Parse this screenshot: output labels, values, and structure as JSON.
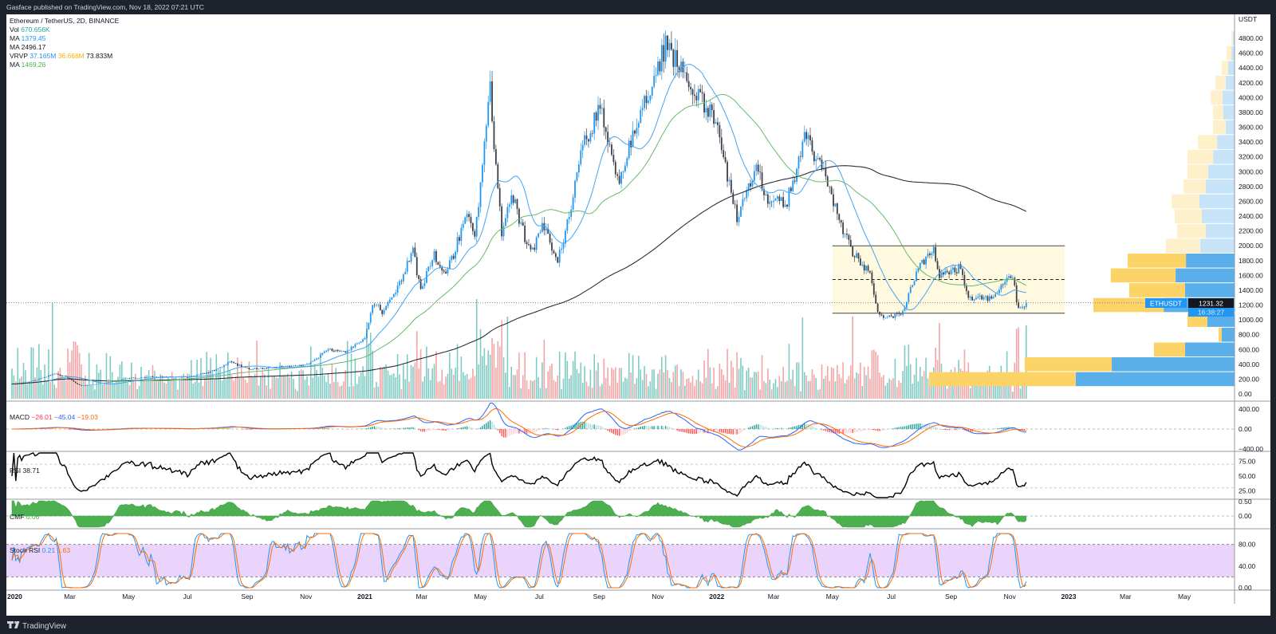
{
  "header": {
    "published": "Gasface published on TradingView.com, Nov 18, 2022 07:21 UTC"
  },
  "footer": {
    "brand": "TradingView"
  },
  "legend": {
    "title": "Ethereum / TetherUS, 2D, BINANCE",
    "vol_label": "Vol",
    "vol_value": "670.656K",
    "ma1_label": "MA",
    "ma1_value": "1379.45",
    "ma2_label": "MA",
    "ma2_value": "2496.17",
    "vrvp_label": "VRVP",
    "vrvp_up": "37.165M",
    "vrvp_down": "36.668M",
    "vrvp_total": "73.833M",
    "ma3_label": "MA",
    "ma3_value": "1469.26"
  },
  "indicators": {
    "macd": {
      "label": "MACD",
      "hist": "−26.01",
      "macd": "−45.04",
      "signal": "−19.03",
      "ticks": [
        "400.00",
        "0.00",
        "−400.00"
      ]
    },
    "rsi": {
      "label": "RSI",
      "value": "38.71",
      "ticks": [
        "75.00",
        "50.00",
        "25.00"
      ]
    },
    "cmf": {
      "label": "CMF",
      "value": "0.06",
      "ticks": [
        "0.50",
        "0.00"
      ]
    },
    "stoch": {
      "label": "Stoch RSI",
      "k": "0.21",
      "d": "1.63",
      "ticks": [
        "80.00",
        "40.00",
        "0.00"
      ]
    }
  },
  "price_axis": {
    "unit": "USDT",
    "ticks": [
      "0.00",
      "200.00",
      "400.00",
      "600.00",
      "800.00",
      "1000.00",
      "1200.00",
      "1400.00",
      "1600.00",
      "1800.00",
      "2000.00",
      "2200.00",
      "2400.00",
      "2600.00",
      "2800.00",
      "3000.00",
      "3200.00",
      "3400.00",
      "3600.00",
      "3800.00",
      "4000.00",
      "4200.00",
      "4400.00",
      "4600.00",
      "4800.00"
    ],
    "last_price": "1231.32",
    "symbol_tag": "ETHUSDT",
    "countdown": "16:38:27"
  },
  "time_axis": [
    {
      "date": "2020-01-01",
      "label": "2020",
      "year": true
    },
    {
      "date": "2020-03-01",
      "label": "Mar"
    },
    {
      "date": "2020-05-01",
      "label": "May"
    },
    {
      "date": "2020-07-01",
      "label": "Jul"
    },
    {
      "date": "2020-09-01",
      "label": "Sep"
    },
    {
      "date": "2020-11-01",
      "label": "Nov"
    },
    {
      "date": "2021-01-01",
      "label": "2021",
      "year": true
    },
    {
      "date": "2021-03-01",
      "label": "Mar"
    },
    {
      "date": "2021-05-01",
      "label": "May"
    },
    {
      "date": "2021-07-01",
      "label": "Jul"
    },
    {
      "date": "2021-09-01",
      "label": "Sep"
    },
    {
      "date": "2021-11-01",
      "label": "Nov"
    },
    {
      "date": "2022-01-01",
      "label": "2022",
      "year": true
    },
    {
      "date": "2022-03-01",
      "label": "Mar"
    },
    {
      "date": "2022-05-01",
      "label": "May"
    },
    {
      "date": "2022-07-01",
      "label": "Jul"
    },
    {
      "date": "2022-09-01",
      "label": "Sep"
    },
    {
      "date": "2022-11-01",
      "label": "Nov"
    },
    {
      "date": "2023-01-01",
      "label": "2023",
      "year": true
    },
    {
      "date": "2023-03-01",
      "label": "Mar"
    },
    {
      "date": "2023-05-01",
      "label": "May"
    }
  ],
  "colors": {
    "up": "#2196f3",
    "down": "#3b3f4a",
    "ma_fast": "#42a5f5",
    "ma_mid": "#66bb6a",
    "ma_slow": "#2a2e39",
    "vol_up": "#80cbc4",
    "vol_down": "#f4a5a5",
    "vrvp_up": "#5aaeea",
    "vrvp_down": "#fcd366",
    "vrvp_up_light": "#c6e3f7",
    "vrvp_down_light": "#fff0cc",
    "macd": "#2962ff",
    "signal": "#ff6d00",
    "cmf": "#4caf50",
    "stoch_k": "#2196f3",
    "stoch_d": "#ff6d00",
    "stoch_band": "#ead4fb",
    "box": "#fff9e0",
    "teal": "#26a69a",
    "red": "#f23645",
    "orange": "#ffb300",
    "green": "#4caf50"
  },
  "chart_data": {
    "type": "candlestick",
    "title": "Ethereum / TetherUS, 2D, BINANCE",
    "interval": "2D",
    "ylabel": "USDT",
    "ylim": [
      0,
      4800
    ],
    "xlim": [
      "2020-01-01",
      "2023-06-30"
    ],
    "grid": false,
    "price_anchors": [
      [
        "2020-01-01",
        130
      ],
      [
        "2020-01-20",
        170
      ],
      [
        "2020-02-14",
        275
      ],
      [
        "2020-02-28",
        225
      ],
      [
        "2020-03-13",
        110
      ],
      [
        "2020-03-31",
        135
      ],
      [
        "2020-04-30",
        210
      ],
      [
        "2020-05-31",
        235
      ],
      [
        "2020-06-30",
        225
      ],
      [
        "2020-07-25",
        300
      ],
      [
        "2020-08-14",
        430
      ],
      [
        "2020-09-05",
        335
      ],
      [
        "2020-09-30",
        360
      ],
      [
        "2020-10-31",
        385
      ],
      [
        "2020-11-24",
        600
      ],
      [
        "2020-12-10",
        560
      ],
      [
        "2020-12-31",
        735
      ],
      [
        "2021-01-10",
        1250
      ],
      [
        "2021-01-20",
        1100
      ],
      [
        "2021-02-20",
        1950
      ],
      [
        "2021-02-28",
        1400
      ],
      [
        "2021-03-13",
        1900
      ],
      [
        "2021-03-25",
        1580
      ],
      [
        "2021-04-16",
        2450
      ],
      [
        "2021-04-25",
        2200
      ],
      [
        "2021-05-11",
        4200
      ],
      [
        "2021-05-23",
        2200
      ],
      [
        "2021-06-03",
        2700
      ],
      [
        "2021-06-22",
        1900
      ],
      [
        "2021-07-05",
        2300
      ],
      [
        "2021-07-20",
        1800
      ],
      [
        "2021-08-13",
        3300
      ],
      [
        "2021-09-03",
        3900
      ],
      [
        "2021-09-21",
        2800
      ],
      [
        "2021-10-05",
        3500
      ],
      [
        "2021-10-28",
        4300
      ],
      [
        "2021-11-10",
        4750
      ],
      [
        "2021-11-28",
        4300
      ],
      [
        "2021-12-04",
        4100
      ],
      [
        "2021-12-20",
        3900
      ],
      [
        "2021-12-31",
        3700
      ],
      [
        "2022-01-22",
        2400
      ],
      [
        "2022-02-10",
        3100
      ],
      [
        "2022-02-24",
        2600
      ],
      [
        "2022-03-14",
        2580
      ],
      [
        "2022-04-03",
        3500
      ],
      [
        "2022-04-25",
        2900
      ],
      [
        "2022-05-10",
        2300
      ],
      [
        "2022-05-20",
        1950
      ],
      [
        "2022-06-10",
        1600
      ],
      [
        "2022-06-18",
        1050
      ],
      [
        "2022-06-30",
        1050
      ],
      [
        "2022-07-12",
        1100
      ],
      [
        "2022-07-28",
        1700
      ],
      [
        "2022-08-14",
        1950
      ],
      [
        "2022-08-20",
        1600
      ],
      [
        "2022-09-10",
        1700
      ],
      [
        "2022-09-20",
        1300
      ],
      [
        "2022-10-15",
        1280
      ],
      [
        "2022-10-30",
        1600
      ],
      [
        "2022-11-05",
        1620
      ],
      [
        "2022-11-09",
        1150
      ],
      [
        "2022-11-18",
        1231.32
      ]
    ],
    "moving_averages": [
      {
        "name": "MA fast",
        "period": 20,
        "last": 1379.45
      },
      {
        "name": "MA mid",
        "period": 50,
        "last": 1469.26
      },
      {
        "name": "MA slow",
        "period": 200,
        "last": 2496.17
      }
    ],
    "last_close": 1231.32,
    "volume_profile": {
      "value_area": [
        200,
        1800
      ],
      "rows": [
        {
          "price": 4800,
          "up": 0.5,
          "down": 0.5
        },
        {
          "price": 4600,
          "up": 1,
          "down": 1.6
        },
        {
          "price": 4400,
          "up": 2.1,
          "down": 2.1
        },
        {
          "price": 4200,
          "up": 2.9,
          "down": 3.4
        },
        {
          "price": 4000,
          "up": 3.9,
          "down": 3.9
        },
        {
          "price": 3800,
          "up": 3.7,
          "down": 3.3
        },
        {
          "price": 3600,
          "up": 2.9,
          "down": 4.1
        },
        {
          "price": 3400,
          "up": 5.7,
          "down": 6.3
        },
        {
          "price": 3200,
          "up": 7,
          "down": 8.4
        },
        {
          "price": 3000,
          "up": 8.6,
          "down": 6.8
        },
        {
          "price": 2800,
          "up": 9.4,
          "down": 7.3
        },
        {
          "price": 2600,
          "up": 11.5,
          "down": 9.1
        },
        {
          "price": 2400,
          "up": 10.7,
          "down": 8.9
        },
        {
          "price": 2200,
          "up": 9.4,
          "down": 9.4
        },
        {
          "price": 2000,
          "up": 11.2,
          "down": 11.3
        },
        {
          "price": 1800,
          "up": 15.9,
          "down": 19.1
        },
        {
          "price": 1600,
          "up": 19.3,
          "down": 21.2
        },
        {
          "price": 1400,
          "up": 16.2,
          "down": 18.3
        },
        {
          "price": 1200,
          "up": 23.2,
          "down": 23
        },
        {
          "price": 1000,
          "up": 8.9,
          "down": 6.5
        },
        {
          "price": 800,
          "up": 4.2,
          "down": 1
        },
        {
          "price": 600,
          "up": 16.2,
          "down": 10.2
        },
        {
          "price": 400,
          "up": 40.2,
          "down": 28.5
        },
        {
          "price": 200,
          "up": 52,
          "down": 48
        }
      ]
    },
    "drawings": {
      "range_box": {
        "start": "2022-05-01",
        "end": "2022-12-28",
        "top": 2000,
        "bottom": 1090,
        "mid": 1545
      }
    },
    "indicators": {
      "macd": {
        "fast": 12,
        "slow": 26,
        "signal": 9,
        "last": {
          "hist": -26.01,
          "macd": -45.04,
          "signal": -19.03
        },
        "ylim": [
          -400,
          400
        ]
      },
      "rsi": {
        "period": 14,
        "last": 38.71,
        "bands": [
          30,
          70
        ],
        "ylim": [
          20,
          80
        ]
      },
      "cmf": {
        "period": 20,
        "last": 0.06
      },
      "stoch_rsi": {
        "k": 0.21,
        "d": 1.63,
        "bands": [
          20,
          80
        ],
        "ylim": [
          0,
          100
        ]
      }
    }
  }
}
